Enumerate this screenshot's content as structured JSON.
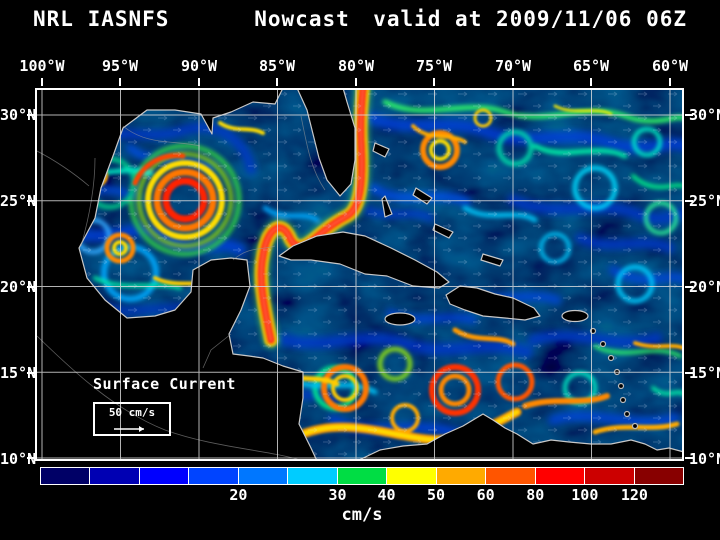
{
  "title": {
    "product": "NRL IASNFS",
    "mode": "Nowcast",
    "valid": "valid at 2009/11/06 06Z"
  },
  "axes": {
    "lon_labels": [
      "100°W",
      "95°W",
      "90°W",
      "85°W",
      "80°W",
      "75°W",
      "70°W",
      "65°W",
      "60°W"
    ],
    "lat_labels": [
      "30°N",
      "25°N",
      "20°N",
      "15°N",
      "10°N"
    ]
  },
  "annotation": {
    "label": "Surface Current",
    "scale": "50 cm/s"
  },
  "colorbar": {
    "unit": "cm/s",
    "tick_labels": [
      "20",
      "30",
      "40",
      "50",
      "60",
      "80",
      "100",
      "120"
    ],
    "segment_colors": [
      "#000066",
      "#0000b3",
      "#0000ff",
      "#0044ff",
      "#0077ff",
      "#00ccff",
      "#00dd44",
      "#ffff00",
      "#ffaa00",
      "#ff5500",
      "#ff0000",
      "#cc0000",
      "#880000"
    ]
  },
  "chart_data": {
    "type": "heatmap",
    "title": "NRL IASNFS Nowcast valid at 2009/11/06 06Z",
    "variable": "Surface Current speed (cm/s)",
    "x_ticks": [
      "100°W",
      "95°W",
      "90°W",
      "85°W",
      "80°W",
      "75°W",
      "70°W",
      "65°W",
      "60°W"
    ],
    "y_ticks": [
      "30°N",
      "25°N",
      "20°N",
      "15°N",
      "10°N"
    ],
    "colorbar_tick_values": [
      20,
      30,
      40,
      50,
      60,
      80,
      100,
      120
    ],
    "legend_position": "bottom",
    "grid": true
  }
}
